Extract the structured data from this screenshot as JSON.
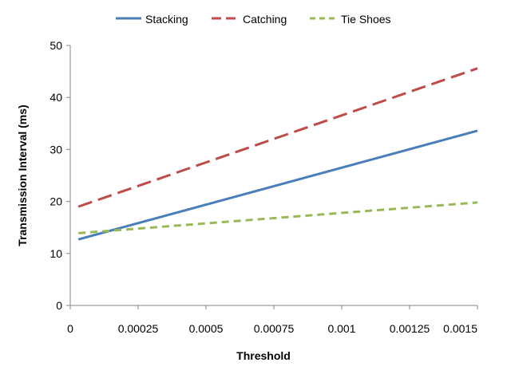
{
  "chart_data": {
    "type": "line",
    "title": "",
    "xlabel": "Threshold",
    "ylabel": "Transmission Interval (ms)",
    "xlim": [
      0,
      0.0015
    ],
    "ylim": [
      0,
      50
    ],
    "x_ticks": [
      0,
      0.00025,
      0.0005,
      0.00075,
      0.001,
      0.00125,
      0.0015
    ],
    "x_tick_labels": [
      "0",
      "0.00025",
      "0.0005",
      "0.00075",
      "0.001",
      "0.00125",
      "0.0015"
    ],
    "y_ticks": [
      0,
      10,
      20,
      30,
      40,
      50
    ],
    "y_tick_labels": [
      "0",
      "10",
      "20",
      "30",
      "40",
      "50"
    ],
    "grid": false,
    "legend_position": "top",
    "series": [
      {
        "name": "Stacking",
        "color": "#4a7ebb",
        "style": "solid",
        "x": [
          3e-05,
          0.0015
        ],
        "y": [
          12.7,
          33.6
        ]
      },
      {
        "name": "Catching",
        "color": "#be4b48",
        "style": "long-dash",
        "x": [
          3e-05,
          0.0015
        ],
        "y": [
          19.0,
          45.6
        ]
      },
      {
        "name": "Tie Shoes",
        "color": "#98b954",
        "style": "dash",
        "x": [
          3e-05,
          0.0015
        ],
        "y": [
          13.9,
          19.8
        ]
      }
    ]
  }
}
